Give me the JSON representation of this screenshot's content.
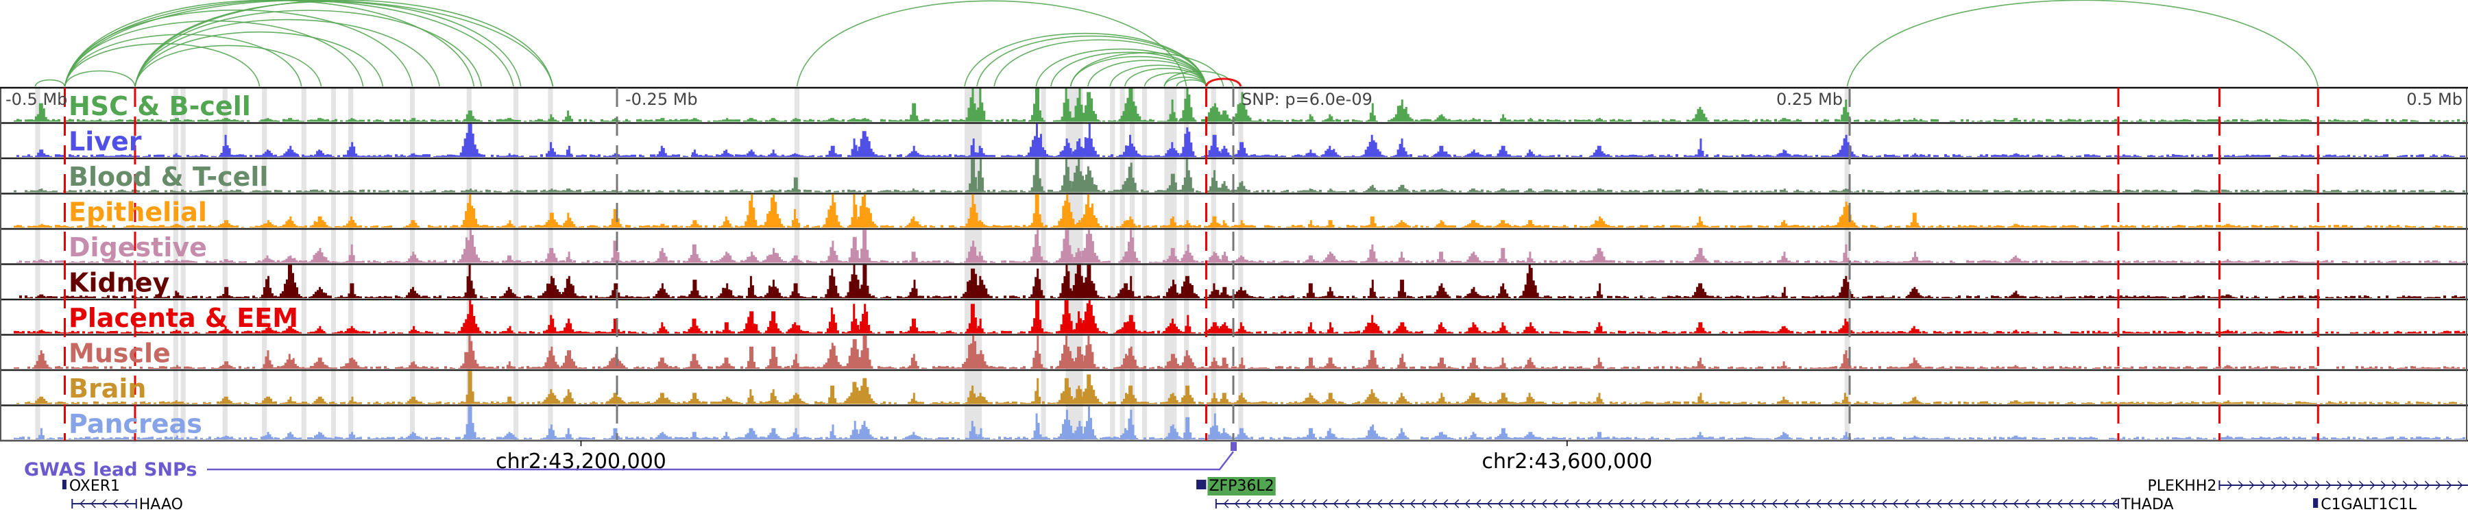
{
  "chart_data": {
    "type": "area",
    "title": "",
    "x_unit": "Mb relative to lead SNP",
    "xlim": [
      -0.5,
      0.5
    ],
    "coordinate_labels": {
      "left_far": "-0.5 Mb",
      "left_near": "-0.25 Mb",
      "snp": "SNP: p=6.0e-09",
      "right_near": "0.25 Mb",
      "right_far": "0.5 Mb"
    },
    "chrom_ticks": [
      {
        "label": "chr2:43,200,000",
        "rel": -0.2646
      },
      {
        "label": "chr2:43,600,000",
        "rel": 0.1354
      }
    ],
    "snp_rel": 0.0,
    "red_dashed_rel": [
      -0.474,
      -0.4455,
      -0.011,
      0.359,
      0.4,
      0.44
    ],
    "gray_dashed_rel": [
      -0.25,
      0.0,
      0.25
    ],
    "highlight_regions": [
      [
        -0.486,
        -0.484
      ],
      [
        -0.43,
        -0.428
      ],
      [
        -0.427,
        -0.425
      ],
      [
        -0.41,
        -0.408
      ],
      [
        -0.394,
        -0.392
      ],
      [
        -0.378,
        -0.376
      ],
      [
        -0.366,
        -0.364
      ],
      [
        -0.359,
        -0.357
      ],
      [
        -0.334,
        -0.332
      ],
      [
        -0.311,
        -0.309
      ],
      [
        -0.292,
        -0.29
      ],
      [
        -0.278,
        -0.276
      ],
      [
        -0.178,
        -0.176
      ],
      [
        -0.109,
        -0.102
      ],
      [
        -0.078,
        -0.076
      ],
      [
        -0.068,
        -0.061
      ],
      [
        -0.05,
        -0.048
      ],
      [
        -0.046,
        -0.044
      ],
      [
        -0.042,
        -0.04
      ],
      [
        -0.037,
        -0.035
      ],
      [
        -0.028,
        -0.023
      ],
      [
        -0.02,
        -0.018
      ],
      [
        -0.009,
        -0.007
      ],
      [
        0.002,
        0.004
      ],
      [
        0.248,
        0.25
      ]
    ],
    "loops": [
      {
        "from": -0.486,
        "to": -0.474,
        "color": "#53a651"
      },
      {
        "from": -0.474,
        "to": -0.4455,
        "color": "#53a651"
      },
      {
        "from": -0.474,
        "to": -0.395,
        "color": "#53a651"
      },
      {
        "from": -0.474,
        "to": -0.378,
        "color": "#53a651"
      },
      {
        "from": -0.474,
        "to": -0.353,
        "color": "#53a651"
      },
      {
        "from": -0.474,
        "to": -0.333,
        "color": "#53a651"
      },
      {
        "from": -0.474,
        "to": -0.308,
        "color": "#53a651"
      },
      {
        "from": -0.474,
        "to": -0.292,
        "color": "#53a651"
      },
      {
        "from": -0.474,
        "to": -0.276,
        "color": "#53a651"
      },
      {
        "from": -0.4455,
        "to": -0.37,
        "color": "#53a651"
      },
      {
        "from": -0.4455,
        "to": -0.345,
        "color": "#53a651"
      },
      {
        "from": -0.4455,
        "to": -0.322,
        "color": "#53a651"
      },
      {
        "from": -0.4455,
        "to": -0.305,
        "color": "#53a651"
      },
      {
        "from": -0.4455,
        "to": -0.289,
        "color": "#53a651"
      },
      {
        "from": -0.4455,
        "to": -0.276,
        "color": "#53a651"
      },
      {
        "from": -0.177,
        "to": -0.019,
        "color": "#53a651"
      },
      {
        "from": -0.109,
        "to": -0.011,
        "color": "#53a651"
      },
      {
        "from": -0.104,
        "to": -0.011,
        "color": "#53a651"
      },
      {
        "from": -0.097,
        "to": -0.011,
        "color": "#53a651"
      },
      {
        "from": -0.08,
        "to": -0.011,
        "color": "#53a651"
      },
      {
        "from": -0.074,
        "to": -0.011,
        "color": "#53a651"
      },
      {
        "from": -0.066,
        "to": -0.011,
        "color": "#53a651"
      },
      {
        "from": -0.059,
        "to": -0.011,
        "color": "#53a651"
      },
      {
        "from": -0.05,
        "to": -0.011,
        "color": "#53a651"
      },
      {
        "from": -0.044,
        "to": -0.011,
        "color": "#53a651"
      },
      {
        "from": -0.036,
        "to": -0.011,
        "color": "#53a651"
      },
      {
        "from": -0.028,
        "to": -0.011,
        "color": "#53a651"
      },
      {
        "from": -0.023,
        "to": -0.011,
        "color": "#53a651"
      },
      {
        "from": -0.066,
        "to": -0.004,
        "color": "#53a651"
      },
      {
        "from": -0.028,
        "to": 0.0,
        "color": "#53a651"
      },
      {
        "from": -0.011,
        "to": 0.003,
        "color": "#e60000"
      },
      {
        "from": 0.249,
        "to": 0.44,
        "color": "#53a651"
      }
    ],
    "peak_loci_rel": [
      -0.484,
      -0.429,
      -0.409,
      -0.392,
      -0.383,
      -0.371,
      -0.358,
      -0.333,
      -0.31,
      -0.294,
      -0.277,
      -0.27,
      -0.251,
      -0.232,
      -0.219,
      -0.206,
      -0.196,
      -0.187,
      -0.178,
      -0.163,
      -0.154,
      -0.15,
      -0.13,
      -0.106,
      -0.103,
      -0.08,
      -0.068,
      -0.063,
      -0.059,
      -0.044,
      -0.042,
      -0.025,
      -0.019,
      -0.008,
      -0.004,
      0.003,
      0.031,
      0.039,
      0.056,
      0.068,
      0.084,
      0.097,
      0.109,
      0.12,
      0.148,
      0.189,
      0.223,
      0.248,
      0.276,
      0.317,
      0.403,
      0.473
    ],
    "series": [
      {
        "name": "HSC & B-cell",
        "color": "#53a651",
        "peaks": [
          5,
          1,
          1,
          1,
          1,
          1,
          1,
          1,
          3,
          1,
          2,
          3,
          1,
          1,
          1,
          1,
          1,
          1,
          1,
          1,
          1,
          1,
          5,
          9,
          9,
          9,
          9,
          9,
          8,
          5,
          9,
          6,
          9,
          5,
          3,
          8,
          2,
          2,
          5,
          6,
          2,
          1,
          2,
          1,
          1,
          4,
          1,
          6,
          1,
          1,
          0,
          0
        ]
      },
      {
        "name": "Liver",
        "color": "#5050e6",
        "peaks": [
          2,
          1,
          6,
          2,
          3,
          2,
          4,
          1,
          9,
          1,
          4,
          3,
          1,
          3,
          2,
          2,
          2,
          2,
          1,
          3,
          5,
          7,
          3,
          5,
          3,
          9,
          5,
          5,
          9,
          1,
          6,
          4,
          8,
          6,
          3,
          4,
          2,
          3,
          6,
          5,
          3,
          2,
          3,
          2,
          3,
          5,
          2,
          6,
          1,
          1,
          0,
          0
        ]
      },
      {
        "name": "Blood & T-cell",
        "color": "#678c69",
        "peaks": [
          1,
          0,
          0,
          0,
          0,
          0,
          0,
          0,
          1,
          0,
          1,
          1,
          0,
          0,
          0,
          0,
          0,
          0,
          4,
          0,
          0,
          0,
          1,
          9,
          9,
          9,
          9,
          9,
          7,
          3,
          8,
          5,
          9,
          6,
          3,
          3,
          1,
          1,
          2,
          2,
          1,
          1,
          1,
          1,
          1,
          1,
          1,
          1,
          0,
          0,
          0,
          0
        ]
      },
      {
        "name": "Epithelial",
        "color": "#ff9e10",
        "peaks": [
          1,
          1,
          2,
          2,
          3,
          3,
          3,
          2,
          9,
          2,
          4,
          4,
          5,
          1,
          2,
          3,
          9,
          9,
          5,
          9,
          9,
          9,
          3,
          9,
          2,
          9,
          9,
          2,
          9,
          2,
          3,
          3,
          2,
          3,
          2,
          2,
          2,
          2,
          3,
          2,
          2,
          2,
          2,
          2,
          3,
          3,
          2,
          7,
          4,
          1,
          1,
          0
        ]
      },
      {
        "name": "Digestive",
        "color": "#c58dab",
        "peaks": [
          1,
          1,
          1,
          2,
          2,
          4,
          5,
          3,
          9,
          2,
          4,
          3,
          6,
          4,
          5,
          3,
          3,
          4,
          2,
          6,
          7,
          9,
          3,
          6,
          3,
          9,
          9,
          4,
          9,
          3,
          9,
          4,
          5,
          3,
          3,
          2,
          2,
          3,
          5,
          3,
          3,
          3,
          4,
          3,
          4,
          4,
          3,
          5,
          3,
          2,
          1,
          0
        ]
      },
      {
        "name": "Kidney",
        "color": "#650000",
        "peaks": [
          1,
          2,
          3,
          6,
          9,
          3,
          4,
          3,
          9,
          3,
          6,
          6,
          4,
          4,
          5,
          4,
          6,
          5,
          4,
          8,
          9,
          9,
          5,
          8,
          6,
          8,
          9,
          9,
          9,
          4,
          6,
          5,
          6,
          4,
          3,
          3,
          4,
          3,
          5,
          5,
          4,
          3,
          4,
          9,
          4,
          4,
          3,
          6,
          3,
          2,
          1,
          0
        ]
      },
      {
        "name": "Placenta & EEM",
        "color": "#e60000",
        "peaks": [
          1,
          1,
          2,
          2,
          2,
          2,
          2,
          2,
          9,
          2,
          5,
          4,
          4,
          3,
          4,
          3,
          6,
          6,
          3,
          7,
          8,
          8,
          4,
          8,
          4,
          9,
          9,
          6,
          9,
          3,
          5,
          4,
          5,
          3,
          3,
          3,
          3,
          3,
          5,
          3,
          3,
          3,
          3,
          3,
          3,
          3,
          2,
          4,
          2,
          1,
          1,
          0
        ]
      },
      {
        "name": "Muscle",
        "color": "#c76963",
        "peaks": [
          5,
          1,
          2,
          5,
          4,
          3,
          3,
          2,
          9,
          2,
          6,
          5,
          4,
          3,
          4,
          3,
          6,
          6,
          4,
          7,
          8,
          9,
          4,
          9,
          5,
          9,
          9,
          6,
          9,
          4,
          6,
          4,
          5,
          3,
          3,
          3,
          3,
          3,
          5,
          4,
          3,
          3,
          3,
          3,
          3,
          3,
          2,
          5,
          3,
          1,
          1,
          0
        ]
      },
      {
        "name": "Brain",
        "color": "#c8922c",
        "peaks": [
          2,
          1,
          2,
          2,
          2,
          2,
          2,
          2,
          9,
          2,
          4,
          4,
          3,
          3,
          3,
          2,
          4,
          4,
          3,
          5,
          6,
          7,
          3,
          5,
          3,
          7,
          7,
          5,
          8,
          3,
          5,
          3,
          5,
          3,
          3,
          3,
          3,
          3,
          4,
          3,
          3,
          3,
          3,
          3,
          3,
          3,
          2,
          3,
          2,
          1,
          1,
          0
        ]
      },
      {
        "name": "Pancreas",
        "color": "#85a3e6",
        "peaks": [
          3,
          1,
          1,
          2,
          2,
          2,
          2,
          2,
          9,
          2,
          4,
          3,
          3,
          2,
          2,
          2,
          3,
          3,
          3,
          4,
          5,
          5,
          2,
          5,
          3,
          7,
          8,
          5,
          9,
          3,
          8,
          4,
          6,
          7,
          3,
          3,
          3,
          3,
          4,
          3,
          2,
          2,
          3,
          2,
          2,
          2,
          2,
          2,
          1,
          1,
          1,
          0
        ]
      }
    ],
    "peak_scale_max": 9
  },
  "gwas": {
    "label": "GWAS lead SNPs",
    "color": "#6a5acd"
  },
  "genes": [
    {
      "name": "OXER1",
      "from": -0.475,
      "to": -0.474,
      "strand": "none",
      "row": 1
    },
    {
      "name": "HAAO",
      "from": -0.471,
      "to": -0.445,
      "strand": "-",
      "row": 2
    },
    {
      "name": "ZFP36L2",
      "from": -0.015,
      "to": -0.011,
      "strand": "none",
      "row": 1,
      "highlight": "#53a651"
    },
    {
      "name": "THADA",
      "from": -0.007,
      "to": 0.359,
      "strand": "-",
      "row": 2
    },
    {
      "name": "PLEKHH2",
      "from": 0.4,
      "to": 0.52,
      "strand": "+",
      "row": 1
    },
    {
      "name": "C1GALT1C1L",
      "from": 0.438,
      "to": 0.44,
      "strand": "none",
      "row": 2
    }
  ]
}
